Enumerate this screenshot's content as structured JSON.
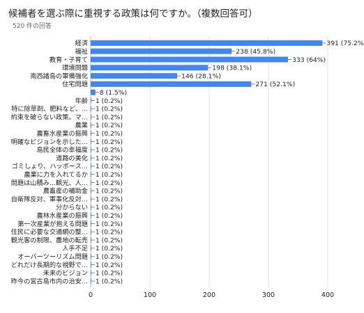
{
  "header": {
    "title": "候補者を選ぶ際に重視する政策は何ですか。（複数回答可）",
    "responses": "520 件の回答"
  },
  "colors": {
    "bar": "#4285f4",
    "grid": "#e0e0e0",
    "axis": "#bdbdbd"
  },
  "chart_data": {
    "type": "bar",
    "orientation": "horizontal",
    "title": "候補者を選ぶ際に重視する政策は何ですか。（複数回答可）",
    "xlim": [
      0,
      400
    ],
    "xticks": [
      "0",
      "100",
      "200",
      "300",
      "400"
    ],
    "grid": true,
    "categories": [
      "経済",
      "福祉",
      "教育・子育て",
      "環境問題",
      "南西諸島の軍備強化",
      "住宅問題",
      "",
      "年齢",
      "特に除草剤、肥料など、…",
      "約束を破らない政策。マ…",
      "農業",
      "農畜水産業の振興",
      "明確なビジョンを示した…",
      "島民全体の幸福度",
      "道路の美化",
      "ゴミしょり、ハッボース…",
      "農業に力を入れてるか",
      "問題は山積み…観光、人…",
      "農畜産の補助金",
      "自衛隊反対、軍事化反対…",
      "分からない",
      "農林水産業の振興",
      "第一次産業が抱える問題",
      "住民に必要な交通網の整…",
      "観光客の制限、農地の転売",
      "人手不足",
      "オーバーツーリズム問題",
      "どれだけ長期的な視野で…",
      "未来のビジョン",
      "昨今の宮古島市内の治安…"
    ],
    "values": [
      391,
      238,
      333,
      198,
      146,
      271,
      8,
      1,
      1,
      1,
      1,
      1,
      1,
      1,
      1,
      1,
      1,
      1,
      1,
      1,
      1,
      1,
      1,
      1,
      1,
      1,
      1,
      1,
      1,
      1
    ],
    "value_labels": [
      "391 (75.2%)",
      "238 (45.8%)",
      "333 (64%)",
      "198 (38.1%)",
      "146 (28.1%)",
      "271 (52.1%)",
      "8 (1.5%)",
      "1 (0.2%)",
      "1 (0.2%)",
      "1 (0.2%)",
      "1 (0.2%)",
      "1 (0.2%)",
      "1 (0.2%)",
      "1 (0.2%)",
      "1 (0.2%)",
      "1 (0.2%)",
      "1 (0.2%)",
      "1 (0.2%)",
      "1 (0.2%)",
      "1 (0.2%)",
      "1 (0.2%)",
      "1 (0.2%)",
      "1 (0.2%)",
      "1 (0.2%)",
      "1 (0.2%)",
      "1 (0.2%)",
      "1 (0.2%)",
      "1 (0.2%)",
      "1 (0.2%)",
      "1 (0.2%)"
    ]
  }
}
